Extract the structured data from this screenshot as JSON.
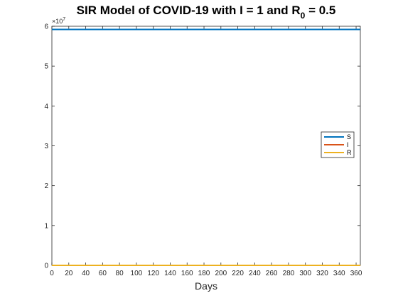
{
  "chart_data": {
    "type": "line",
    "title": {
      "prefix": "SIR Model of COVID-19 with I = 1 and R",
      "subscript": "0",
      "suffix": " = 0.5"
    },
    "xlabel": "Days",
    "ylabel": "",
    "xlim": [
      0,
      365
    ],
    "ylim": [
      0,
      6
    ],
    "y_scale_exponent": "×10",
    "y_scale_power": "7",
    "x_ticks": [
      "0",
      "20",
      "40",
      "60",
      "80",
      "100",
      "120",
      "140",
      "160",
      "180",
      "200",
      "220",
      "240",
      "260",
      "280",
      "300",
      "320",
      "340",
      "360"
    ],
    "x_tick_values": [
      0,
      20,
      40,
      60,
      80,
      100,
      120,
      140,
      160,
      180,
      200,
      220,
      240,
      260,
      280,
      300,
      320,
      340,
      360
    ],
    "y_ticks": [
      "0",
      "1",
      "2",
      "3",
      "4",
      "5",
      "6"
    ],
    "y_tick_values": [
      0,
      1,
      2,
      3,
      4,
      5,
      6
    ],
    "grid": false,
    "legend_position": "east",
    "series": [
      {
        "name": "S",
        "color": "#0072BD",
        "x": [
          0,
          365
        ],
        "y": [
          5.92,
          5.92
        ]
      },
      {
        "name": "I",
        "color": "#D95319",
        "x": [
          0,
          365
        ],
        "y": [
          0,
          0
        ]
      },
      {
        "name": "R",
        "color": "#EDB120",
        "x": [
          0,
          365
        ],
        "y": [
          0,
          0
        ]
      }
    ]
  }
}
